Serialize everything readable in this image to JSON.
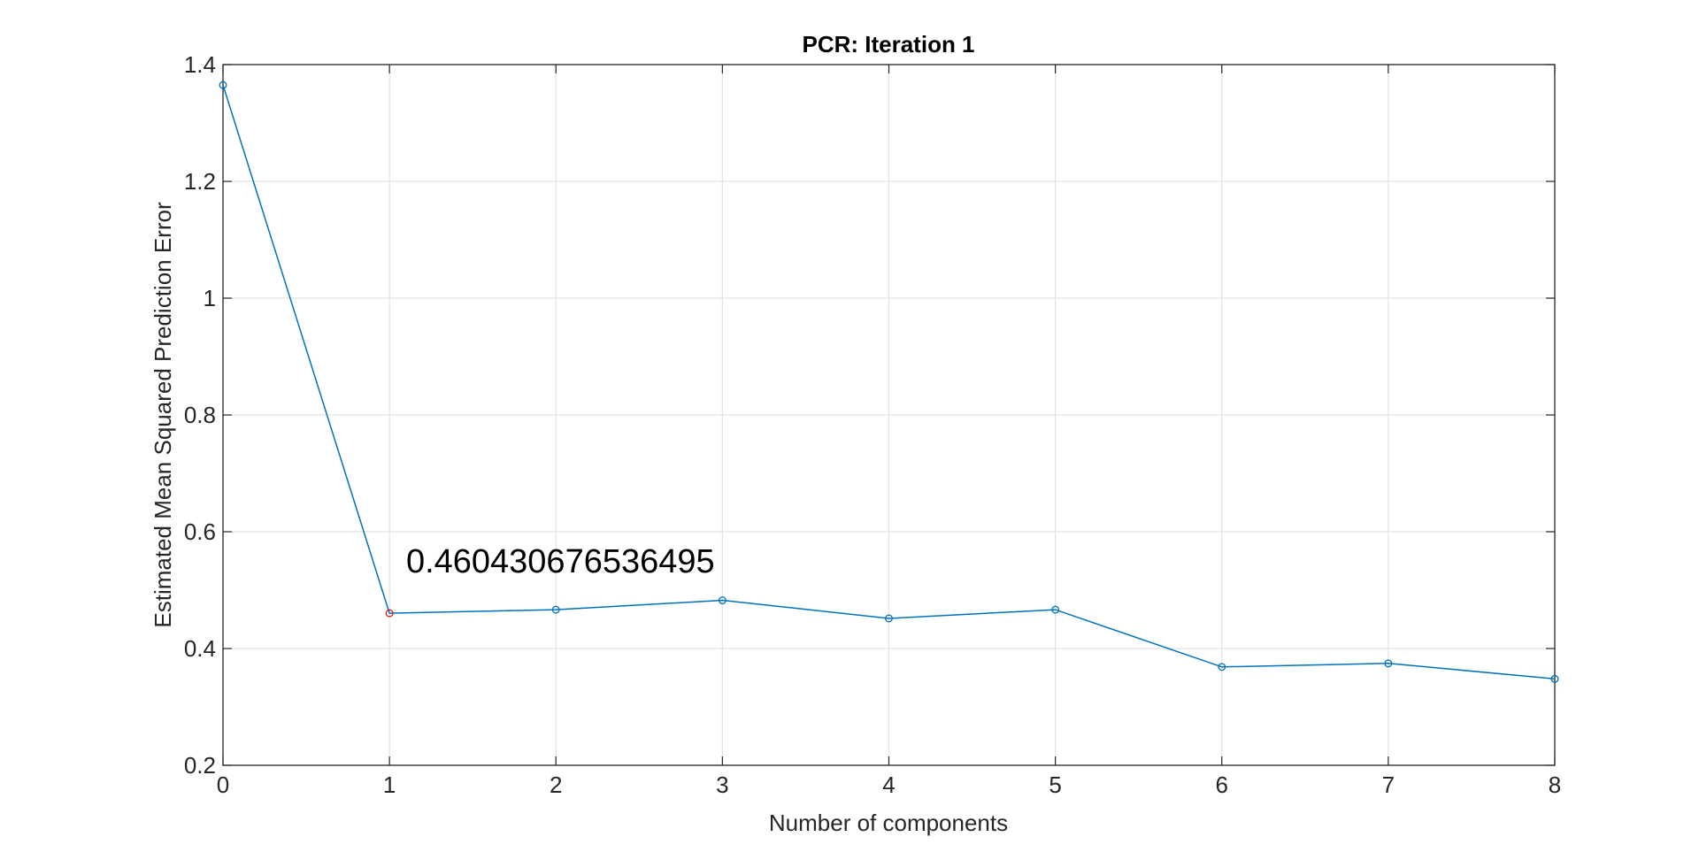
{
  "chart_data": {
    "type": "line",
    "title": "PCR: Iteration 1",
    "xlabel": "Number of components",
    "ylabel": "Estimated Mean Squared Prediction Error",
    "xlim": [
      0,
      8
    ],
    "ylim": [
      0.2,
      1.4
    ],
    "x_ticks": [
      "0",
      "1",
      "2",
      "3",
      "4",
      "5",
      "6",
      "7",
      "8"
    ],
    "y_ticks": [
      "0.2",
      "0.4",
      "0.6",
      "0.8",
      "1",
      "1.2",
      "1.4"
    ],
    "grid": true,
    "series": [
      {
        "x": [
          0,
          1,
          2,
          3,
          4,
          5,
          6,
          7,
          8
        ],
        "values": [
          1.365,
          0.4604,
          0.4665,
          0.4825,
          0.4515,
          0.4665,
          0.3685,
          0.3745,
          0.348
        ],
        "color": "#0072BD",
        "marker": "circle"
      }
    ],
    "highlight": {
      "x": 1,
      "y": 0.4604,
      "color": "#D11F1F"
    },
    "annotation": {
      "text": "0.460430676536495",
      "x": 1.1,
      "y": 0.55
    }
  }
}
